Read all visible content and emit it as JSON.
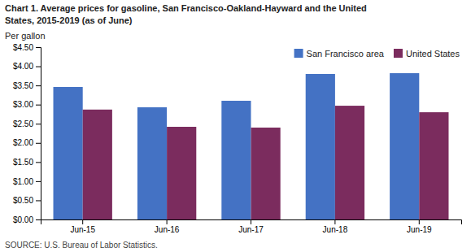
{
  "chart_data": {
    "type": "bar",
    "title": [
      "Chart 1. Average prices for gasoline, San Francisco-Oakland-Hayward and the United",
      "States, 2015-2019  (as of June)"
    ],
    "ylabel": "Per gallon",
    "annotations": [
      "SOURCE: U.S. Bureau of Labor Statistics."
    ],
    "categories": [
      "Jun-15",
      "Jun-16",
      "Jun-17",
      "Jun-18",
      "Jun-19"
    ],
    "series": [
      {
        "name": "San Francisco area",
        "color": "#4472C4",
        "values": [
          3.46,
          2.93,
          3.1,
          3.8,
          3.82
        ]
      },
      {
        "name": "United States",
        "color": "#7B2C5E",
        "values": [
          2.87,
          2.42,
          2.4,
          2.97,
          2.8
        ]
      }
    ],
    "ylim": [
      0,
      4.5
    ],
    "yticks": [
      {
        "value": 0,
        "label": "$0.00"
      },
      {
        "value": 0.5,
        "label": "$0.50"
      },
      {
        "value": 1,
        "label": "$1.00"
      },
      {
        "value": 1.5,
        "label": "$1.50"
      },
      {
        "value": 2,
        "label": "$2.00"
      },
      {
        "value": 2.5,
        "label": "$2.50"
      },
      {
        "value": 3,
        "label": "$3.00"
      },
      {
        "value": 3.5,
        "label": "$3.50"
      },
      {
        "value": 4,
        "label": "$4.00"
      },
      {
        "value": 4.5,
        "label": "$4.50"
      }
    ],
    "grid": false,
    "legend": "upper right"
  }
}
